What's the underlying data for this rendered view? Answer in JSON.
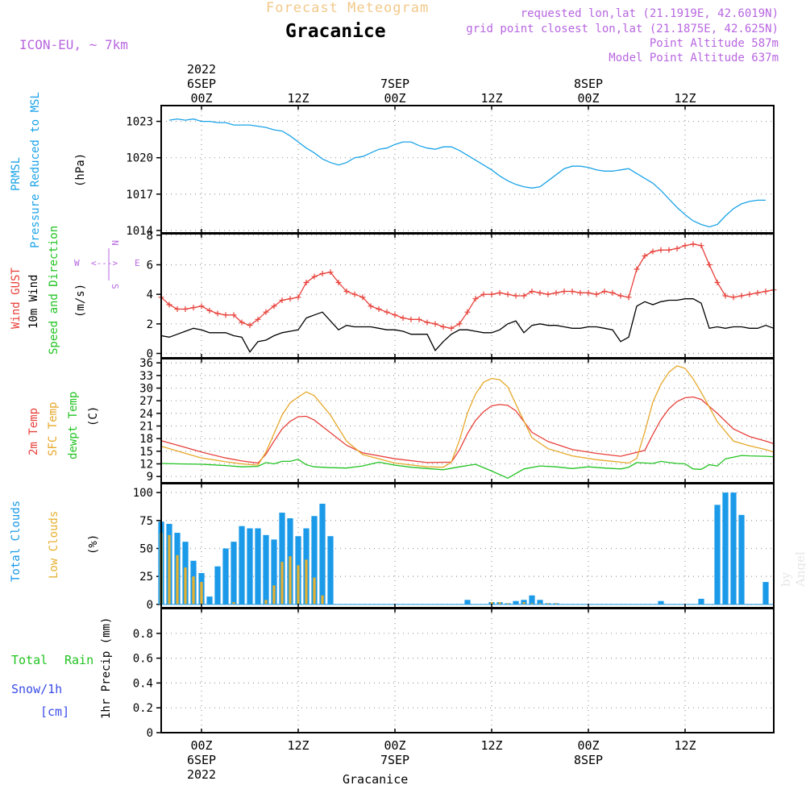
{
  "header": {
    "title": "Forecast Meteogram",
    "station": "Gracanice",
    "model": "ICON-EU, ~ 7km",
    "requested": "requested lon,lat (21.1919E, 42.6019N)",
    "gridpoint": "grid point closest lon,lat (21.1875E, 42.625N)",
    "point_alt": "Point Altitude 587m",
    "model_alt": "Model Point Altitude 637m",
    "credit": "by Angel",
    "bottom_station": "Gracanice"
  },
  "time_axis": {
    "ticks": [
      {
        "t": 0,
        "label": "00Z",
        "date": "6SEP",
        "year": "2022"
      },
      {
        "t": 12,
        "label": "12Z",
        "date": "",
        "year": ""
      },
      {
        "t": 24,
        "label": "00Z",
        "date": "7SEP",
        "year": ""
      },
      {
        "t": 36,
        "label": "12Z",
        "date": "",
        "year": ""
      },
      {
        "t": 48,
        "label": "00Z",
        "date": "8SEP",
        "year": ""
      },
      {
        "t": 60,
        "label": "12Z",
        "date": "",
        "year": ""
      }
    ],
    "range_hours": [
      -5,
      71
    ]
  },
  "labels": {
    "pressure": {
      "l1": "PRMSL",
      "l2": "Pressure Reduced to MSL",
      "unit": "(hPa)"
    },
    "wind": {
      "l1": "Wind GUST",
      "l2": "10m Wind",
      "l3": "Speed and Direction",
      "unit": "(m/s)",
      "compass_w": "W",
      "compass_e": "E",
      "compass_n": "N",
      "compass_s": "S",
      "compass_arrow": "<--->"
    },
    "temp": {
      "l1": "2m Temp",
      "l2": "SFC Temp",
      "l3": "dewpt Temp",
      "unit": "(C)"
    },
    "clouds": {
      "l1": "Total Clouds",
      "l2": "Low Clouds",
      "unit": "(%)"
    },
    "precip": {
      "l1": "Total",
      "l1b": "Rain",
      "l2": "Snow/1h",
      "l3": "[cm]",
      "unit": "1hr Precip (mm)"
    }
  },
  "colors": {
    "pressure": "#1aa3e8",
    "gust": "#e8403a",
    "wind": "#000000",
    "t2m": "#e8403a",
    "tsfc": "#e6a82a",
    "dewpt": "#22c322",
    "total_clouds": "#1a9ae8",
    "low_clouds": "#e6b030",
    "rain": "#22c322",
    "snow": "#3a4ce8",
    "label_purple": "#b766e0"
  },
  "chart_data": [
    {
      "type": "line",
      "panel": "pressure",
      "ylabel": "(hPa)",
      "ylim": [
        1013.8,
        1024.3
      ],
      "yticks": [
        1014,
        1017,
        1020,
        1023
      ],
      "grid": true,
      "series": [
        {
          "name": "PRMSL",
          "x": [
            -4,
            -3,
            -2,
            -1,
            0,
            1,
            2,
            3,
            4,
            5,
            6,
            7,
            8,
            9,
            10,
            11,
            12,
            13,
            14,
            15,
            16,
            17,
            18,
            19,
            20,
            21,
            22,
            23,
            24,
            25,
            26,
            27,
            28,
            29,
            30,
            31,
            32,
            33,
            34,
            35,
            36,
            37,
            38,
            39,
            40,
            41,
            42,
            43,
            44,
            45,
            46,
            47,
            48,
            49,
            50,
            51,
            52,
            53,
            54,
            55,
            56,
            57,
            58,
            59,
            60,
            61,
            62,
            63,
            64,
            65,
            66,
            67,
            68,
            69,
            70
          ],
          "values": [
            1023.1,
            1023.2,
            1023.1,
            1023.2,
            1023.0,
            1023.0,
            1022.9,
            1022.9,
            1022.7,
            1022.7,
            1022.7,
            1022.6,
            1022.5,
            1022.3,
            1022.2,
            1021.8,
            1021.3,
            1020.8,
            1020.4,
            1019.9,
            1019.6,
            1019.4,
            1019.6,
            1020.0,
            1020.1,
            1020.4,
            1020.7,
            1020.8,
            1021.1,
            1021.3,
            1021.3,
            1021.0,
            1020.8,
            1020.7,
            1020.9,
            1020.9,
            1020.6,
            1020.2,
            1019.8,
            1019.4,
            1019.0,
            1018.5,
            1018.1,
            1017.8,
            1017.6,
            1017.5,
            1017.6,
            1018.1,
            1018.6,
            1019.1,
            1019.3,
            1019.3,
            1019.2,
            1019.0,
            1018.9,
            1018.9,
            1019.0,
            1019.1,
            1018.7,
            1018.3,
            1017.9,
            1017.3,
            1016.6,
            1015.9,
            1015.3,
            1014.8,
            1014.5,
            1014.3,
            1014.5,
            1015.2,
            1015.8,
            1016.2,
            1016.4,
            1016.5,
            1016.5
          ]
        }
      ]
    },
    {
      "type": "line",
      "panel": "wind",
      "ylabel": "(m/s)",
      "ylim": [
        -0.3,
        8.1
      ],
      "yticks": [
        0,
        2,
        4,
        6,
        8
      ],
      "grid": true,
      "series": [
        {
          "name": "Wind GUST",
          "x": [
            -5,
            -4,
            -3,
            -2,
            -1,
            0,
            1,
            2,
            3,
            4,
            5,
            6,
            7,
            8,
            9,
            10,
            11,
            12,
            13,
            14,
            15,
            16,
            17,
            18,
            19,
            20,
            21,
            22,
            23,
            24,
            25,
            26,
            27,
            28,
            29,
            30,
            31,
            32,
            33,
            34,
            35,
            36,
            37,
            38,
            39,
            40,
            41,
            42,
            43,
            44,
            45,
            46,
            47,
            48,
            49,
            50,
            51,
            52,
            53,
            54,
            55,
            56,
            57,
            58,
            59,
            60,
            61,
            62,
            63,
            64,
            65,
            66,
            67,
            68,
            69,
            70,
            71
          ],
          "values": [
            3.8,
            3.3,
            3.0,
            3.0,
            3.1,
            3.2,
            2.9,
            2.7,
            2.6,
            2.6,
            2.1,
            1.9,
            2.3,
            2.8,
            3.2,
            3.6,
            3.7,
            3.8,
            4.8,
            5.2,
            5.4,
            5.5,
            4.8,
            4.2,
            4.0,
            3.8,
            3.2,
            3.0,
            2.8,
            2.6,
            2.4,
            2.3,
            2.3,
            2.1,
            2.0,
            1.8,
            1.7,
            2.0,
            2.8,
            3.7,
            4.0,
            4.0,
            4.1,
            4.0,
            3.9,
            3.9,
            4.2,
            4.1,
            4.0,
            4.1,
            4.2,
            4.2,
            4.1,
            4.1,
            4.0,
            4.2,
            4.1,
            3.9,
            3.8,
            5.7,
            6.6,
            6.9,
            7.0,
            7.0,
            7.1,
            7.3,
            7.4,
            7.3,
            6.0,
            4.8,
            3.9,
            3.8,
            3.9,
            4.0,
            4.1,
            4.2,
            4.3
          ]
        },
        {
          "name": "10m Wind",
          "x": [
            -5,
            -4,
            -3,
            -2,
            -1,
            0,
            1,
            2,
            3,
            4,
            5,
            6,
            7,
            8,
            9,
            10,
            11,
            12,
            13,
            14,
            15,
            16,
            17,
            18,
            19,
            20,
            21,
            22,
            23,
            24,
            25,
            26,
            27,
            28,
            29,
            30,
            31,
            32,
            33,
            34,
            35,
            36,
            37,
            38,
            39,
            40,
            41,
            42,
            43,
            44,
            45,
            46,
            47,
            48,
            49,
            50,
            51,
            52,
            53,
            54,
            55,
            56,
            57,
            58,
            59,
            60,
            61,
            62,
            63,
            64,
            65,
            66,
            67,
            68,
            69,
            70,
            71
          ],
          "values": [
            1.2,
            1.1,
            1.3,
            1.5,
            1.7,
            1.6,
            1.4,
            1.4,
            1.4,
            1.2,
            1.1,
            0.1,
            0.8,
            0.9,
            1.2,
            1.4,
            1.5,
            1.6,
            2.4,
            2.6,
            2.8,
            2.2,
            1.6,
            1.9,
            1.8,
            1.8,
            1.8,
            1.7,
            1.6,
            1.6,
            1.5,
            1.3,
            1.3,
            1.3,
            0.2,
            0.8,
            1.3,
            1.6,
            1.6,
            1.5,
            1.4,
            1.4,
            1.6,
            2.0,
            2.2,
            1.4,
            1.9,
            2.0,
            1.9,
            1.9,
            1.8,
            1.7,
            1.7,
            1.8,
            1.8,
            1.7,
            1.6,
            0.8,
            1.1,
            3.2,
            3.5,
            3.3,
            3.5,
            3.6,
            3.6,
            3.7,
            3.7,
            3.4,
            1.7,
            1.8,
            1.7,
            1.8,
            1.8,
            1.7,
            1.7,
            1.9,
            1.7
          ]
        }
      ]
    },
    {
      "type": "line",
      "panel": "temperature",
      "ylabel": "(C)",
      "ylim": [
        7.5,
        37
      ],
      "yticks": [
        9,
        12,
        15,
        18,
        21,
        24,
        27,
        30,
        33,
        36
      ],
      "grid": true,
      "series": [
        {
          "name": "2m Temp",
          "x": [
            -5,
            -2,
            0,
            3,
            5,
            7,
            8,
            9,
            10,
            11,
            12,
            13,
            14,
            16,
            18,
            20,
            24,
            28,
            31,
            32,
            33,
            34,
            35,
            36,
            37,
            38,
            39,
            41,
            43,
            46,
            49,
            52,
            55,
            56,
            57,
            58,
            59,
            60,
            61,
            62,
            64,
            66,
            68,
            70,
            71
          ],
          "values": [
            17.5,
            15.9,
            14.8,
            13.4,
            12.7,
            12.2,
            14.3,
            17.4,
            20.3,
            22.1,
            23.2,
            23.3,
            22.4,
            19.4,
            16.4,
            14.6,
            13.2,
            12.3,
            12.4,
            15.3,
            19.2,
            22.3,
            24.4,
            25.8,
            26.1,
            25.9,
            24.6,
            19.5,
            17.3,
            15.4,
            14.5,
            13.8,
            15.2,
            19.0,
            22.5,
            25.1,
            26.8,
            27.7,
            27.9,
            27.3,
            24.0,
            20.3,
            18.5,
            17.4,
            16.8
          ]
        },
        {
          "name": "SFC Temp",
          "x": [
            -5,
            -2,
            0,
            3,
            5,
            7,
            8,
            9,
            10,
            11,
            12,
            13,
            14,
            16,
            18,
            20,
            24,
            28,
            30,
            31,
            32,
            33,
            34,
            35,
            36,
            37,
            38,
            39,
            41,
            43,
            46,
            49,
            52,
            53,
            54,
            55,
            56,
            57,
            58,
            59,
            60,
            61,
            62,
            64,
            66,
            68,
            70,
            71
          ],
          "values": [
            16.2,
            14.5,
            13.4,
            12.5,
            12.0,
            11.7,
            14.8,
            19.2,
            23.6,
            26.5,
            27.9,
            29.1,
            28.2,
            23.6,
            17.4,
            14.2,
            12.2,
            11.3,
            11.2,
            12.4,
            17.6,
            24.1,
            28.6,
            31.4,
            32.3,
            32.0,
            30.3,
            26.2,
            18.2,
            15.6,
            13.9,
            13.0,
            12.4,
            12.2,
            13.3,
            19.6,
            26.7,
            30.9,
            33.8,
            35.3,
            34.7,
            32.2,
            29.0,
            22.0,
            17.4,
            16.3,
            15.4,
            14.8
          ]
        },
        {
          "name": "dewpt Temp",
          "x": [
            -5,
            -3,
            0,
            3,
            5,
            7,
            8,
            9,
            10,
            11,
            12,
            13,
            14,
            16,
            18,
            20,
            22,
            24,
            26,
            28,
            30,
            32,
            34,
            36,
            38,
            40,
            42,
            44,
            46,
            48,
            50,
            52,
            53,
            54,
            56,
            57,
            58,
            59,
            60,
            61,
            62,
            63,
            64,
            65,
            66,
            67,
            68,
            70,
            71
          ],
          "values": [
            12.1,
            12.0,
            11.9,
            11.6,
            11.3,
            11.4,
            12.3,
            12.0,
            12.6,
            12.6,
            13.1,
            11.8,
            11.3,
            11.1,
            11.0,
            11.5,
            12.4,
            11.7,
            11.2,
            10.9,
            10.6,
            11.3,
            11.9,
            10.3,
            8.6,
            10.8,
            11.5,
            11.3,
            10.9,
            11.3,
            11.0,
            10.8,
            11.2,
            12.3,
            12.1,
            12.6,
            12.3,
            12.1,
            12.0,
            10.8,
            10.7,
            11.8,
            11.5,
            13.2,
            13.6,
            14.0,
            13.9,
            13.8,
            13.7
          ]
        }
      ]
    },
    {
      "type": "bar",
      "panel": "clouds",
      "ylabel": "(%)",
      "ylim": [
        -3,
        108
      ],
      "yticks": [
        0,
        25,
        50,
        75,
        100
      ],
      "grid": true,
      "series": [
        {
          "name": "Total Clouds",
          "x": [
            -5,
            -4,
            -3,
            -2,
            -1,
            0,
            1,
            2,
            3,
            4,
            5,
            6,
            7,
            8,
            9,
            10,
            11,
            12,
            13,
            14,
            15,
            16,
            33,
            36,
            37,
            38,
            39,
            40,
            41,
            42,
            43,
            44,
            57,
            62,
            64,
            65,
            66,
            67,
            68,
            69,
            70
          ],
          "values": [
            74,
            72,
            64,
            56,
            39,
            28,
            7,
            34,
            50,
            56,
            70,
            68,
            68,
            62,
            58,
            82,
            77,
            61,
            68,
            79,
            90,
            61,
            4,
            2,
            2,
            1,
            3,
            4,
            8,
            4,
            1,
            1,
            3,
            5,
            89,
            100,
            100,
            80,
            0,
            0,
            20
          ]
        },
        {
          "name": "Low Clouds",
          "x": [
            -5,
            -4,
            -3,
            -2,
            -1,
            0,
            1,
            2,
            3,
            4,
            5,
            6,
            7,
            8,
            9,
            10,
            11,
            12,
            13,
            14,
            15,
            16,
            33,
            36,
            37,
            38,
            39,
            40,
            41,
            42,
            43,
            44,
            57,
            62,
            64,
            65,
            66,
            67,
            68,
            69,
            70
          ],
          "values": [
            64,
            62,
            44,
            33,
            25,
            20,
            0,
            0,
            0,
            2,
            0,
            0,
            0,
            4,
            17,
            38,
            43,
            35,
            40,
            24,
            8,
            0,
            0,
            2,
            2,
            1,
            0,
            2,
            1,
            1,
            1,
            1,
            0,
            0,
            0,
            0,
            0,
            0,
            0,
            0,
            0
          ]
        }
      ]
    },
    {
      "type": "line",
      "panel": "precip",
      "ylabel": "1hr Precip (mm)",
      "ylim": [
        0,
        1.0
      ],
      "yticks": [
        0,
        0.2,
        0.4,
        0.6,
        0.8
      ],
      "grid": true,
      "series": []
    }
  ]
}
